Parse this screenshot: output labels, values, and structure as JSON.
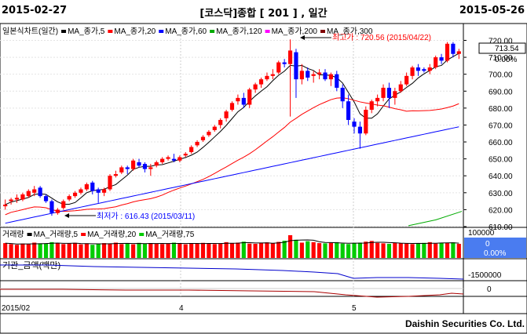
{
  "header": {
    "date_start": "2015-02-27",
    "title": "[코스닥]종합 [ 201 ] , 일간",
    "date_end": "2015-05-26"
  },
  "price_panel": {
    "legend": [
      {
        "label": "일본식차트(일간)",
        "color": "#ff0000"
      },
      {
        "label": "MA_종가,5",
        "color": "#000000"
      },
      {
        "label": "MA_종가,20",
        "color": "#ff0000"
      },
      {
        "label": "MA_종가,60",
        "color": "#0000ff"
      },
      {
        "label": "MA_종가,120",
        "color": "#00aa00"
      },
      {
        "label": "MA_종가,200",
        "color": "#ff00ff"
      },
      {
        "label": "MA_종가,300",
        "color": "#800000"
      }
    ],
    "high_label": "최고가 : 720.56 (2015/04/22)",
    "low_label": "최저가 : 616.43 (2015/03/11)",
    "current_value": "713.54",
    "change_pct": "0.00%",
    "y_ticks": [
      "720.00",
      "710.00",
      "700.00",
      "690.00",
      "680.00",
      "670.00",
      "660.00",
      "650.00",
      "640.00",
      "630.00",
      "620.00",
      "610.00"
    ]
  },
  "volume_panel": {
    "legend": [
      {
        "label": "거래량",
        "color": "#ff0000"
      },
      {
        "label": "MA_거래량,5",
        "color": "#000000"
      },
      {
        "label": "MA_거래량,20",
        "color": "#ff0000"
      },
      {
        "label": "MA_거래량,75",
        "color": "#00cc00"
      }
    ],
    "y_tick": "100000",
    "current_value": "0",
    "change_pct": "0.00%"
  },
  "amount_panel": {
    "legend": "기관_금액(백만)",
    "y_tick": "-1500000"
  },
  "flow_panel": {
    "y_tick": "0"
  },
  "x_axis": {
    "labels": [
      "2015/02",
      "4",
      "5"
    ]
  },
  "footer": {
    "brand": "Daishin Securities Co. Ltd."
  },
  "chart_data": {
    "type": "candlestick",
    "y_range": [
      610,
      723
    ],
    "high_point": {
      "value": 720.56,
      "date": "2015/04/22"
    },
    "low_point": {
      "value": 616.43,
      "date": "2015/03/11"
    },
    "candles": [
      [
        622,
        626,
        620,
        623
      ],
      [
        625,
        627,
        623,
        626
      ],
      [
        626,
        629,
        624,
        627
      ],
      [
        626,
        630,
        625,
        629
      ],
      [
        628,
        632,
        627,
        631
      ],
      [
        630,
        634,
        628,
        632
      ],
      [
        633,
        634,
        627,
        628
      ],
      [
        628,
        629,
        624,
        625
      ],
      [
        625,
        626,
        616.4,
        618
      ],
      [
        618,
        621,
        617,
        620
      ],
      [
        621,
        626,
        620,
        625
      ],
      [
        626,
        629,
        625,
        628
      ],
      [
        628,
        631,
        627,
        630
      ],
      [
        630,
        633,
        629,
        632
      ],
      [
        632,
        636,
        631,
        635
      ],
      [
        636,
        637,
        629,
        631
      ],
      [
        632,
        633,
        624,
        630
      ],
      [
        630,
        633,
        628,
        632
      ],
      [
        632,
        641,
        631,
        640
      ],
      [
        640,
        643,
        639,
        641
      ],
      [
        642,
        646,
        641,
        645
      ],
      [
        645,
        646,
        641,
        644
      ],
      [
        644,
        650,
        643,
        649
      ],
      [
        648,
        650,
        645,
        646
      ],
      [
        647,
        648,
        642,
        644
      ],
      [
        644,
        647,
        640,
        645
      ],
      [
        646,
        649,
        645,
        648
      ],
      [
        648,
        651,
        647,
        650
      ],
      [
        650,
        652,
        649,
        651
      ],
      [
        650,
        653,
        648,
        649
      ],
      [
        649,
        652,
        648,
        651
      ],
      [
        652,
        654,
        651,
        653
      ],
      [
        654,
        658,
        653,
        657
      ],
      [
        658,
        661,
        657,
        660
      ],
      [
        661,
        664,
        660,
        663
      ],
      [
        664,
        667,
        663,
        666
      ],
      [
        667,
        670,
        666,
        669
      ],
      [
        670,
        674,
        668,
        673
      ],
      [
        674,
        679,
        672,
        678
      ],
      [
        679,
        684,
        678,
        683
      ],
      [
        684,
        688,
        682,
        686
      ],
      [
        686,
        689,
        680,
        682
      ],
      [
        682,
        692,
        680,
        691
      ],
      [
        691,
        695,
        689,
        694
      ],
      [
        694,
        698,
        692,
        697
      ],
      [
        697,
        701,
        696,
        699
      ],
      [
        699,
        703,
        697,
        700
      ],
      [
        701,
        708,
        700,
        707
      ],
      [
        707,
        709,
        704,
        706
      ],
      [
        706,
        720.56,
        675,
        714
      ],
      [
        713,
        715,
        686,
        697
      ],
      [
        697,
        706,
        694,
        702
      ],
      [
        702,
        704,
        696,
        698
      ],
      [
        699,
        702,
        695,
        700
      ],
      [
        700,
        703,
        697,
        701
      ],
      [
        701,
        703,
        696,
        697
      ],
      [
        697,
        701,
        693,
        700
      ],
      [
        700,
        702,
        690,
        692
      ],
      [
        692,
        694,
        680,
        684
      ],
      [
        684,
        688,
        670,
        673
      ],
      [
        672,
        674,
        665,
        669
      ],
      [
        669,
        672,
        656,
        665
      ],
      [
        665,
        681,
        664,
        679
      ],
      [
        679,
        685,
        677,
        684
      ],
      [
        684,
        688,
        681,
        686
      ],
      [
        686,
        694,
        684,
        692
      ],
      [
        692,
        695,
        680,
        686
      ],
      [
        686,
        692,
        682,
        690
      ],
      [
        690,
        696,
        689,
        694
      ],
      [
        694,
        701,
        693,
        699
      ],
      [
        699,
        705,
        697,
        704
      ],
      [
        704,
        706,
        699,
        702
      ],
      [
        703,
        704,
        701,
        702
      ],
      [
        702,
        706,
        700,
        704
      ],
      [
        704,
        711,
        703,
        710
      ],
      [
        710,
        712,
        706,
        708
      ],
      [
        708,
        719,
        707,
        718
      ],
      [
        718,
        719,
        710,
        712
      ],
      [
        712,
        715,
        709,
        713.54
      ]
    ],
    "volume": [
      62,
      58,
      55,
      60,
      57,
      64,
      61,
      59,
      66,
      62,
      58,
      60,
      63,
      57,
      61,
      55,
      59,
      62,
      60,
      64,
      58,
      61,
      57,
      63,
      60,
      62,
      59,
      58,
      61,
      64,
      60,
      57,
      62,
      59,
      63,
      61,
      58,
      60,
      66,
      62,
      64,
      68,
      60,
      59,
      63,
      65,
      61,
      67,
      72,
      95,
      76,
      64,
      70,
      66,
      62,
      61,
      63,
      66,
      60,
      58,
      62,
      64,
      68,
      71,
      63,
      61,
      59,
      64,
      62,
      60,
      58,
      61,
      63,
      66,
      60,
      64,
      62,
      65,
      59
    ]
  }
}
